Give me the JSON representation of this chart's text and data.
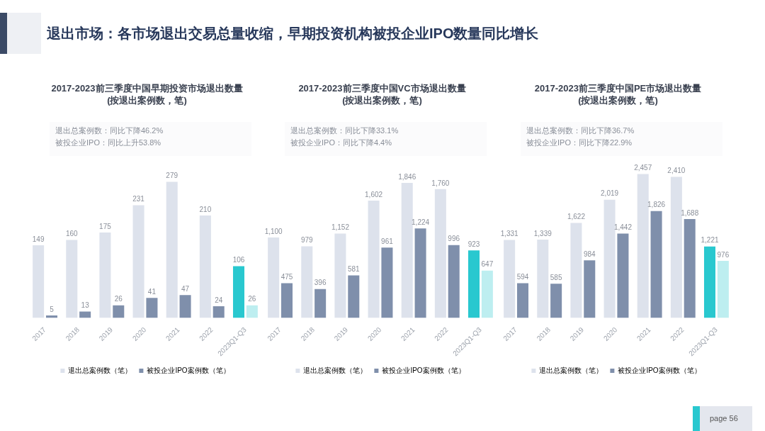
{
  "chart_data": [
    {
      "type": "other",
      "title": "退出市场：各市场退出交易总量收缩，早期投资机构被投企业IPO数量同比增长",
      "annotations": [
        "page 56"
      ]
    },
    {
      "type": "bar",
      "title": "2017-2023前三季度中国早期投资市场退出数量",
      "subtitle": "(按退出案例数，笔)",
      "annotations": [
        "退出总案例数：同比下降46.2%",
        "被投企业IPO：同比上升53.8%"
      ],
      "categories": [
        "2017",
        "2018",
        "2019",
        "2020",
        "2021",
        "2022",
        "2023Q1-Q3"
      ],
      "series": [
        {
          "name": "退出总案例数（笔）",
          "color": "#dde2ec",
          "colors": [
            "#dde2ec",
            "#dde2ec",
            "#dde2ec",
            "#dde2ec",
            "#dde2ec",
            "#dde2ec",
            "#29c8cf"
          ],
          "values": [
            149,
            160,
            175,
            231,
            279,
            210,
            106
          ]
        },
        {
          "name": "被投企业IPO案例数（笔）",
          "color": "#7f8fab",
          "colors": [
            "#7f8fab",
            "#7f8fab",
            "#7f8fab",
            "#7f8fab",
            "#7f8fab",
            "#7f8fab",
            "#bdeef0"
          ],
          "values": [
            5,
            13,
            26,
            41,
            47,
            24,
            26
          ]
        }
      ],
      "data_labels": true,
      "legend": "bottom",
      "tick_labels": "x"
    },
    {
      "type": "bar",
      "title": "2017-2023前三季度中国VC市场退出数量",
      "subtitle": "(按退出案例数，笔)",
      "annotations": [
        "退出总案例数：同比下降33.1%",
        "被投企业IPO：同比下降4.4%"
      ],
      "categories": [
        "2017",
        "2018",
        "2019",
        "2020",
        "2021",
        "2022",
        "2023Q1-Q3"
      ],
      "series": [
        {
          "name": "退出总案例数（笔）",
          "color": "#dde2ec",
          "colors": [
            "#dde2ec",
            "#dde2ec",
            "#dde2ec",
            "#dde2ec",
            "#dde2ec",
            "#dde2ec",
            "#29c8cf"
          ],
          "values": [
            1100,
            979,
            1152,
            1602,
            1846,
            1760,
            923
          ],
          "value_labels": [
            "1,100",
            "979",
            "1,152",
            "1,602",
            "1,846",
            "1,760",
            "923"
          ]
        },
        {
          "name": "被投企业IPO案例数（笔）",
          "color": "#7f8fab",
          "colors": [
            "#7f8fab",
            "#7f8fab",
            "#7f8fab",
            "#7f8fab",
            "#7f8fab",
            "#7f8fab",
            "#bdeef0"
          ],
          "values": [
            475,
            396,
            581,
            961,
            1224,
            996,
            647
          ],
          "value_labels": [
            "475",
            "396",
            "581",
            "961",
            "1,224",
            "996",
            "647"
          ]
        }
      ],
      "legend": "bottom",
      "tick_labels": "x"
    },
    {
      "type": "bar",
      "title": "2017-2023前三季度中国PE市场退出数量",
      "subtitle": "(按退出案例数，笔)",
      "annotations": [
        "退出总案例数：同比下降36.7%",
        "被投企业IPO：同比下降22.9%"
      ],
      "categories": [
        "2017",
        "2018",
        "2019",
        "2020",
        "2021",
        "2022",
        "2023Q1-Q3"
      ],
      "series": [
        {
          "name": "退出总案例数（笔）",
          "color": "#dde2ec",
          "colors": [
            "#dde2ec",
            "#dde2ec",
            "#dde2ec",
            "#dde2ec",
            "#dde2ec",
            "#dde2ec",
            "#29c8cf"
          ],
          "values": [
            1331,
            1339,
            1622,
            2019,
            2457,
            2410,
            1221
          ],
          "value_labels": [
            "1,331",
            "1,339",
            "1,622",
            "2,019",
            "2,457",
            "2,410",
            "1,221"
          ]
        },
        {
          "name": "被投企业IPO案例数（笔）",
          "color": "#7f8fab",
          "colors": [
            "#7f8fab",
            "#7f8fab",
            "#7f8fab",
            "#7f8fab",
            "#7f8fab",
            "#7f8fab",
            "#bdeef0"
          ],
          "values": [
            594,
            585,
            984,
            1442,
            1826,
            1688,
            976
          ],
          "value_labels": [
            "594",
            "585",
            "984",
            "1,442",
            "1,826",
            "1,688",
            "976"
          ]
        }
      ],
      "legend": "bottom",
      "tick_labels": "x"
    }
  ]
}
